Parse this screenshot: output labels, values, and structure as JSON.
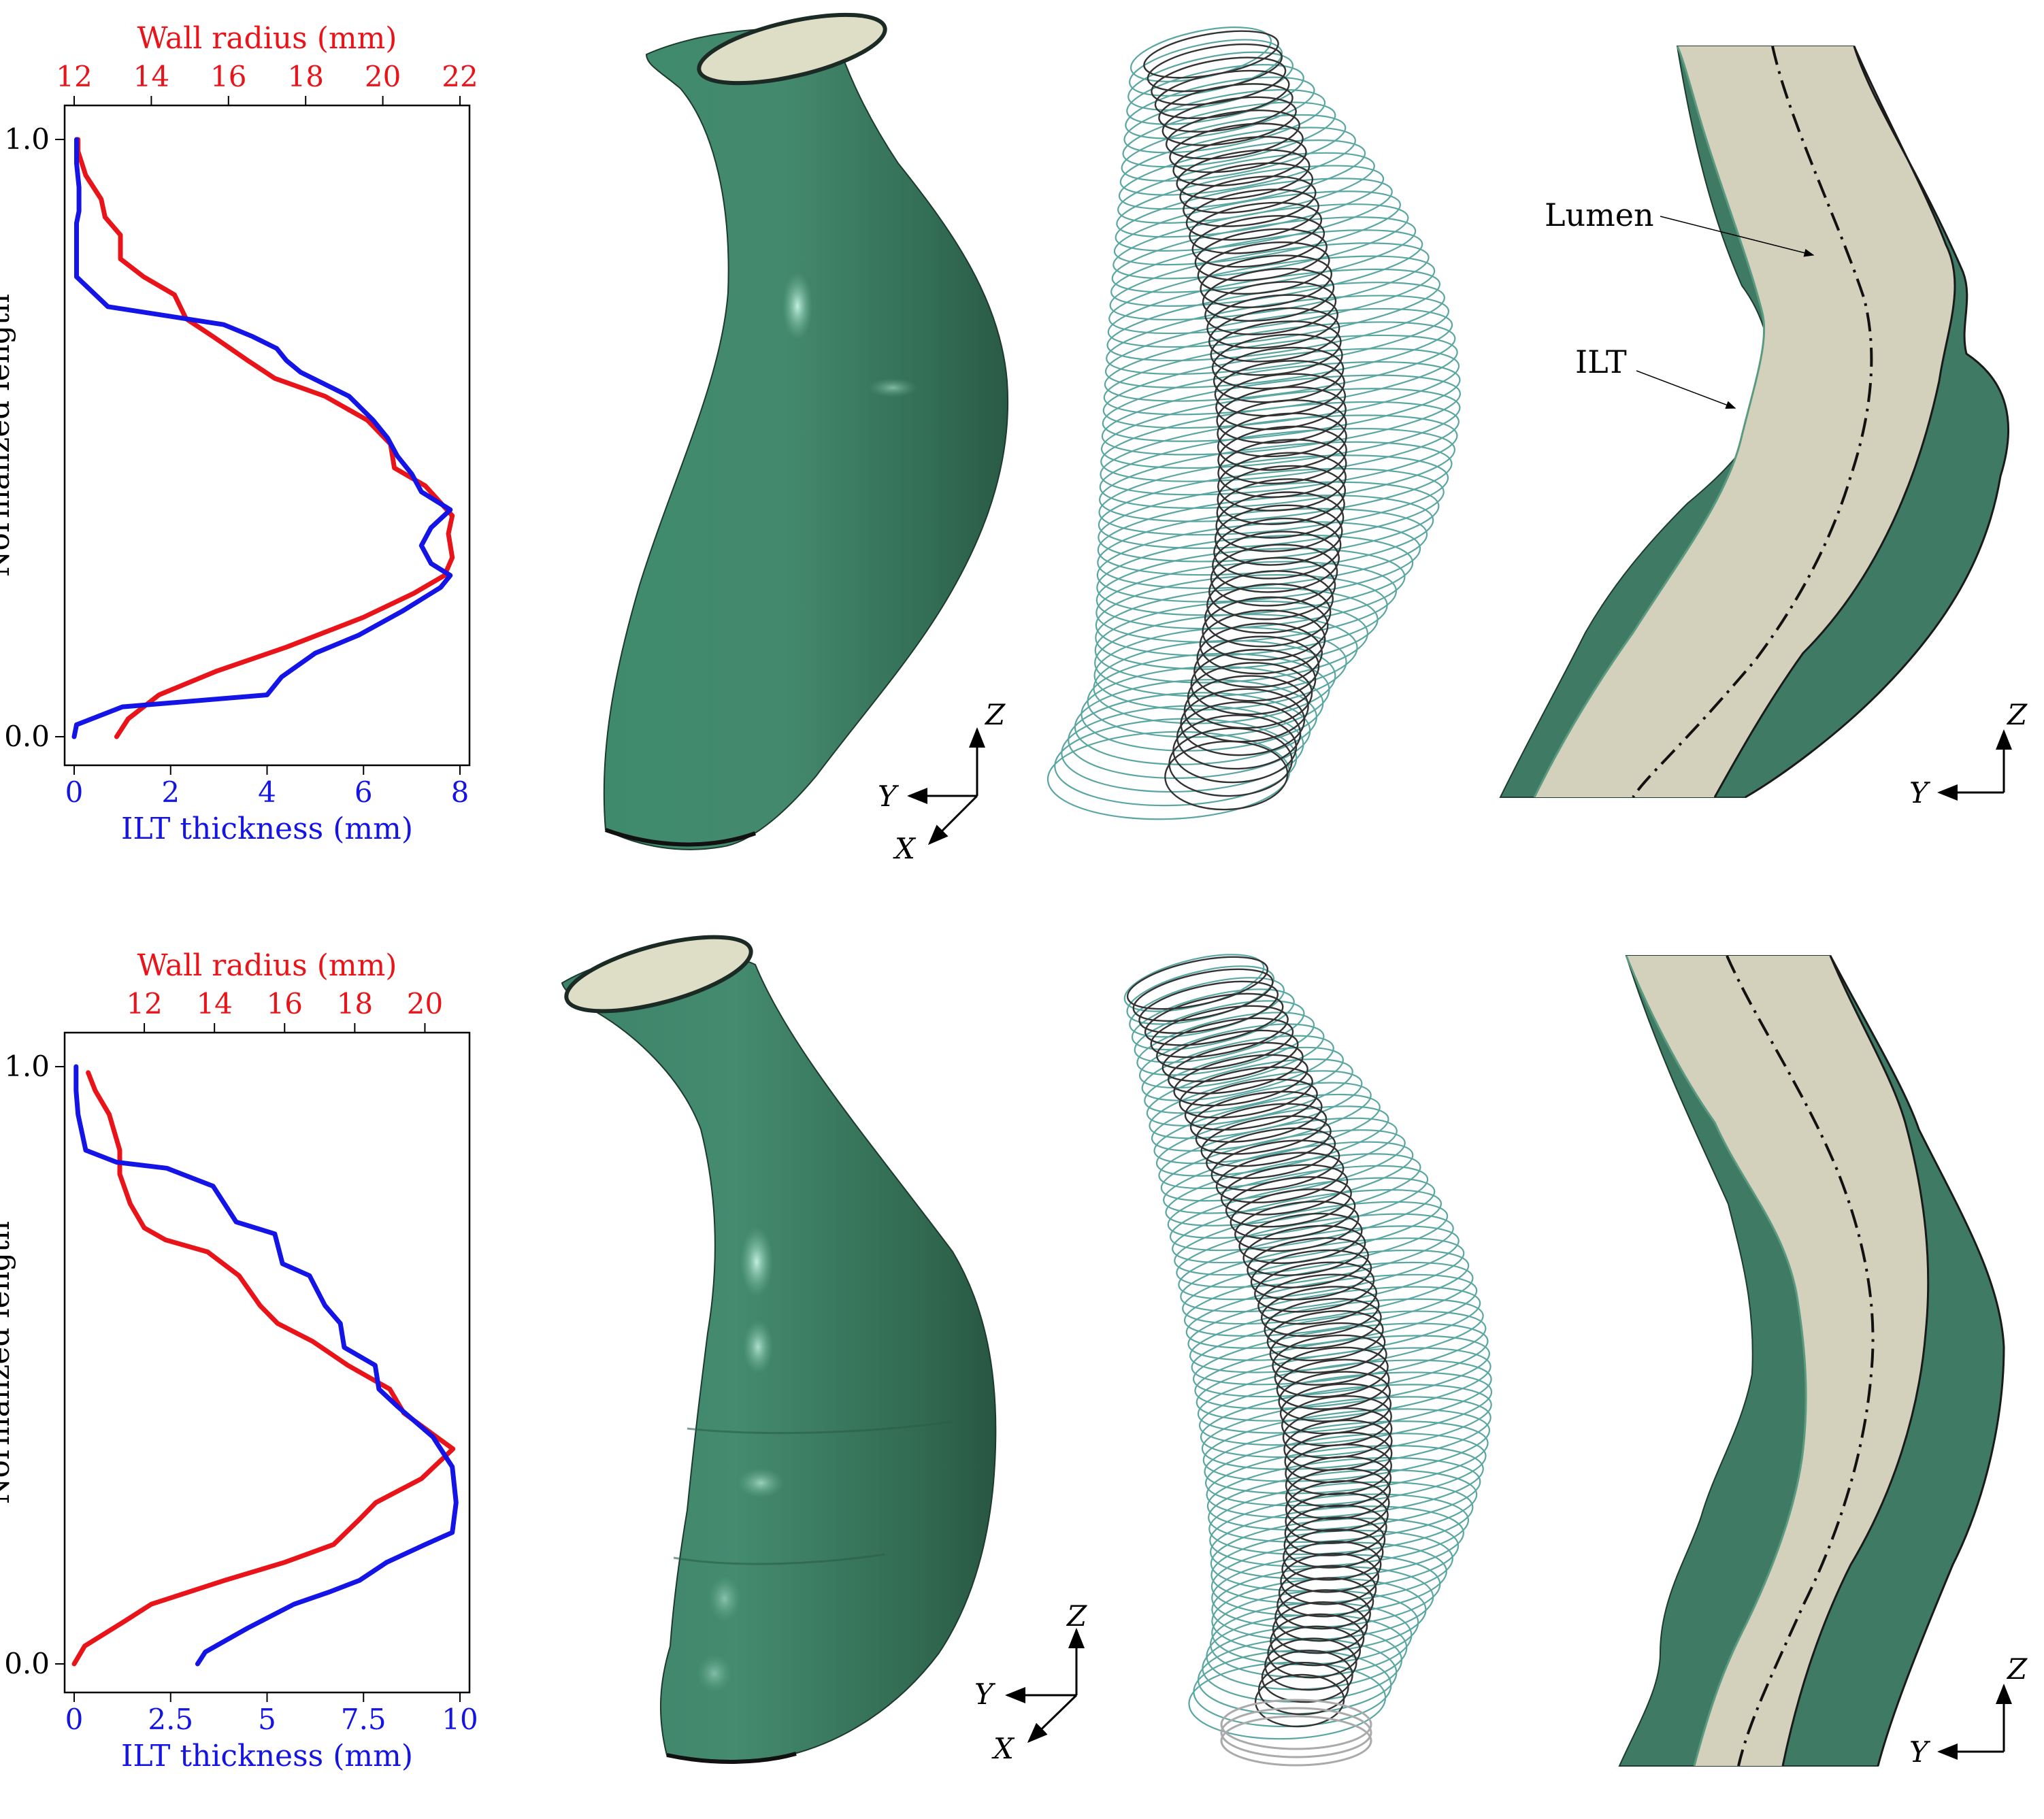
{
  "chart_data": [
    {
      "type": "line",
      "xlabel_top": "Wall radius (mm)",
      "xlabel_bottom": "ILT thickness (mm)",
      "ylabel": "Normalized length",
      "top_axis": {
        "range": [
          12,
          22
        ],
        "ticks": [
          12,
          14,
          16,
          18,
          20,
          22
        ],
        "color": "#e8141a"
      },
      "bottom_axis": {
        "range": [
          0,
          8
        ],
        "ticks": [
          0,
          2,
          4,
          6,
          8
        ],
        "color": "#1414e6"
      },
      "y_axis": {
        "range": [
          0.0,
          1.0
        ],
        "ticks": [
          0.0,
          1.0
        ]
      },
      "series": [
        {
          "axis": "top",
          "color": "#e8141a",
          "points": [
            [
              13.1,
              0.0
            ],
            [
              13.4,
              0.03
            ],
            [
              14.2,
              0.07
            ],
            [
              15.7,
              0.11
            ],
            [
              17.5,
              0.15
            ],
            [
              19.5,
              0.2
            ],
            [
              20.8,
              0.24
            ],
            [
              21.6,
              0.27
            ],
            [
              21.8,
              0.3
            ],
            [
              21.7,
              0.34
            ],
            [
              21.8,
              0.37
            ],
            [
              21.1,
              0.42
            ],
            [
              20.3,
              0.45
            ],
            [
              20.2,
              0.49
            ],
            [
              19.6,
              0.53
            ],
            [
              18.5,
              0.57
            ],
            [
              17.2,
              0.6
            ],
            [
              16.5,
              0.63
            ],
            [
              15.6,
              0.67
            ],
            [
              14.9,
              0.7
            ],
            [
              14.6,
              0.74
            ],
            [
              13.8,
              0.77
            ],
            [
              13.2,
              0.8
            ],
            [
              13.2,
              0.84
            ],
            [
              12.8,
              0.87
            ],
            [
              12.7,
              0.9
            ],
            [
              12.3,
              0.94
            ],
            [
              12.1,
              0.98
            ],
            [
              12.1,
              1.0
            ]
          ]
        },
        {
          "axis": "bottom",
          "color": "#1414e6",
          "points": [
            [
              0.0,
              0.0
            ],
            [
              0.05,
              0.02
            ],
            [
              1.0,
              0.05
            ],
            [
              4.0,
              0.07
            ],
            [
              4.3,
              0.1
            ],
            [
              5.0,
              0.14
            ],
            [
              5.9,
              0.17
            ],
            [
              6.8,
              0.21
            ],
            [
              7.6,
              0.25
            ],
            [
              7.8,
              0.27
            ],
            [
              7.4,
              0.29
            ],
            [
              7.2,
              0.32
            ],
            [
              7.4,
              0.35
            ],
            [
              7.8,
              0.38
            ],
            [
              7.2,
              0.41
            ],
            [
              7.0,
              0.44
            ],
            [
              6.7,
              0.47
            ],
            [
              6.5,
              0.5
            ],
            [
              6.2,
              0.53
            ],
            [
              5.7,
              0.57
            ],
            [
              4.7,
              0.61
            ],
            [
              4.4,
              0.63
            ],
            [
              4.2,
              0.65
            ],
            [
              3.7,
              0.67
            ],
            [
              3.1,
              0.69
            ],
            [
              0.7,
              0.72
            ],
            [
              0.05,
              0.77
            ],
            [
              0.05,
              0.8
            ],
            [
              0.05,
              0.86
            ],
            [
              0.1,
              0.88
            ],
            [
              0.1,
              0.92
            ],
            [
              0.05,
              0.96
            ],
            [
              0.05,
              1.0
            ]
          ]
        }
      ]
    },
    {
      "type": "line",
      "xlabel_top": "Wall radius (mm)",
      "xlabel_bottom": "ILT thickness (mm)",
      "ylabel": "Normalized length",
      "top_axis": {
        "range": [
          10,
          21
        ],
        "ticks": [
          12,
          14,
          16,
          18,
          20
        ],
        "color": "#e8141a"
      },
      "bottom_axis": {
        "range": [
          0,
          10
        ],
        "ticks": [
          0,
          2.5,
          5.0,
          7.5,
          10.0
        ],
        "color": "#1414e6"
      },
      "y_axis": {
        "range": [
          0.0,
          1.0
        ],
        "ticks": [
          0.0,
          1.0
        ]
      },
      "series": [
        {
          "axis": "top",
          "color": "#e8141a",
          "points": [
            [
              10.0,
              0.0
            ],
            [
              10.3,
              0.03
            ],
            [
              11.4,
              0.07
            ],
            [
              12.2,
              0.1
            ],
            [
              14.3,
              0.14
            ],
            [
              16.0,
              0.17
            ],
            [
              17.4,
              0.2
            ],
            [
              18.1,
              0.24
            ],
            [
              18.6,
              0.27
            ],
            [
              19.9,
              0.31
            ],
            [
              20.8,
              0.36
            ],
            [
              20.1,
              0.39
            ],
            [
              19.4,
              0.42
            ],
            [
              19.0,
              0.46
            ],
            [
              17.8,
              0.5
            ],
            [
              16.8,
              0.54
            ],
            [
              15.8,
              0.57
            ],
            [
              15.3,
              0.6
            ],
            [
              14.7,
              0.65
            ],
            [
              13.8,
              0.69
            ],
            [
              12.6,
              0.71
            ],
            [
              12.0,
              0.73
            ],
            [
              11.6,
              0.77
            ],
            [
              11.3,
              0.82
            ],
            [
              11.3,
              0.86
            ],
            [
              11.0,
              0.92
            ],
            [
              10.6,
              0.96
            ],
            [
              10.4,
              0.99
            ]
          ]
        },
        {
          "axis": "bottom",
          "color": "#1414e6",
          "points": [
            [
              3.2,
              0.0
            ],
            [
              3.4,
              0.02
            ],
            [
              4.5,
              0.06
            ],
            [
              5.7,
              0.1
            ],
            [
              6.6,
              0.12
            ],
            [
              7.4,
              0.14
            ],
            [
              8.1,
              0.17
            ],
            [
              9.1,
              0.2
            ],
            [
              9.8,
              0.22
            ],
            [
              9.9,
              0.27
            ],
            [
              9.8,
              0.33
            ],
            [
              9.3,
              0.38
            ],
            [
              8.4,
              0.43
            ],
            [
              7.9,
              0.46
            ],
            [
              7.8,
              0.5
            ],
            [
              7.0,
              0.53
            ],
            [
              6.9,
              0.57
            ],
            [
              6.5,
              0.6
            ],
            [
              6.1,
              0.65
            ],
            [
              5.4,
              0.67
            ],
            [
              5.2,
              0.72
            ],
            [
              4.2,
              0.74
            ],
            [
              3.9,
              0.77
            ],
            [
              3.6,
              0.8
            ],
            [
              2.4,
              0.83
            ],
            [
              1.1,
              0.84
            ],
            [
              0.3,
              0.86
            ],
            [
              0.1,
              0.92
            ],
            [
              0.05,
              0.96
            ],
            [
              0.05,
              1.0
            ]
          ]
        }
      ]
    }
  ],
  "labels": {
    "lumen": "Lumen",
    "ilt": "ILT"
  },
  "axes_triad": {
    "z": "Z",
    "y": "Y",
    "x": "X"
  },
  "colors": {
    "wall_surface": "#3b7d63",
    "wall_dark": "#2c5e4a",
    "lumen_fill": "#d3d1bb",
    "wireframe_outer": "#5aa6a1",
    "wireframe_inner": "#333333"
  }
}
